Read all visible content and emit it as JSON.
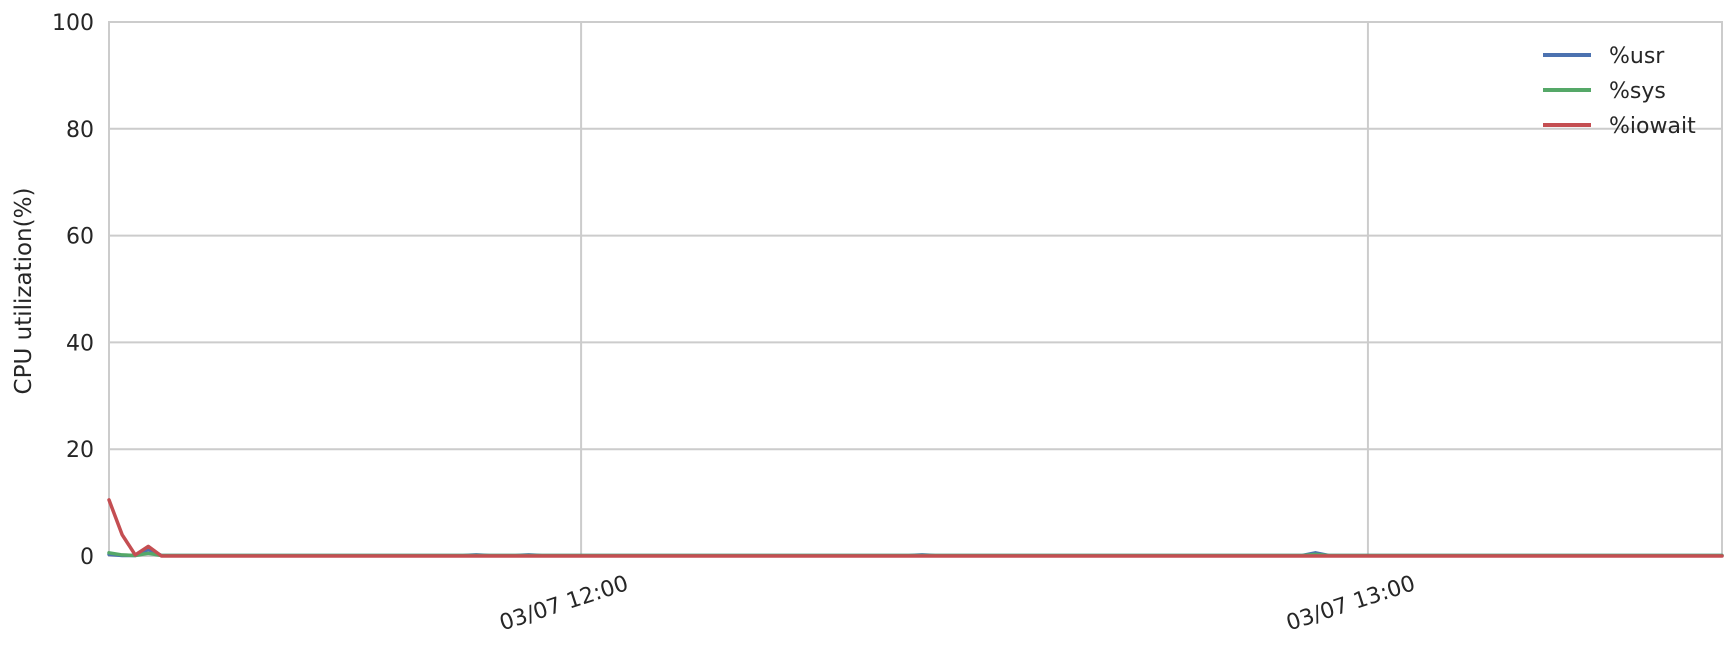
{
  "chart_data": {
    "type": "line",
    "title": "",
    "xlabel": "",
    "ylabel": "CPU utilization(%)",
    "ylim": [
      0,
      100
    ],
    "yticks": [
      0,
      20,
      40,
      60,
      80,
      100
    ],
    "xlim": [
      "03/07 11:24",
      "03/07 13:27"
    ],
    "xticks": [
      {
        "label": "03/07 12:00",
        "minute": 36
      },
      {
        "label": "03/07 13:00",
        "minute": 96
      }
    ],
    "grid": true,
    "legend_position": "top-right",
    "x_minutes": [
      0,
      1,
      2,
      3,
      4,
      5,
      6,
      7,
      8,
      9,
      10,
      11,
      12,
      13,
      14,
      15,
      16,
      17,
      18,
      19,
      20,
      21,
      22,
      23,
      24,
      25,
      26,
      27,
      28,
      29,
      30,
      31,
      32,
      33,
      34,
      35,
      36,
      37,
      38,
      39,
      40,
      41,
      42,
      43,
      44,
      45,
      46,
      47,
      48,
      49,
      50,
      51,
      52,
      53,
      54,
      55,
      56,
      57,
      58,
      59,
      60,
      61,
      62,
      63,
      64,
      65,
      66,
      67,
      68,
      69,
      70,
      71,
      72,
      73,
      74,
      75,
      76,
      77,
      78,
      79,
      80,
      81,
      82,
      83,
      84,
      85,
      86,
      87,
      88,
      89,
      90,
      91,
      92,
      93,
      94,
      95,
      96,
      97,
      98,
      99,
      100,
      101,
      102,
      103,
      104,
      105,
      106,
      107,
      108,
      109,
      110,
      111,
      112,
      113,
      114,
      115,
      116,
      117,
      118,
      119,
      120,
      121,
      122,
      123
    ],
    "series": [
      {
        "name": "%usr",
        "color": "#4c72b0",
        "values": [
          0.3,
          0.1,
          0.1,
          1.2,
          0.1,
          0.1,
          0.1,
          0.1,
          0.1,
          0.1,
          0.1,
          0.1,
          0.1,
          0.1,
          0.1,
          0.1,
          0.1,
          0.1,
          0.1,
          0.1,
          0.1,
          0.1,
          0.1,
          0.1,
          0.1,
          0.1,
          0.1,
          0.1,
          0.2,
          0.1,
          0.1,
          0.1,
          0.2,
          0.1,
          0.1,
          0.1,
          0.1,
          0.1,
          0.1,
          0.1,
          0.1,
          0.1,
          0.1,
          0.1,
          0.1,
          0.1,
          0.1,
          0.1,
          0.1,
          0.1,
          0.1,
          0.1,
          0.1,
          0.1,
          0.1,
          0.1,
          0.1,
          0.1,
          0.1,
          0.1,
          0.1,
          0.1,
          0.2,
          0.1,
          0.1,
          0.1,
          0.1,
          0.1,
          0.1,
          0.1,
          0.1,
          0.1,
          0.1,
          0.1,
          0.1,
          0.1,
          0.1,
          0.1,
          0.1,
          0.1,
          0.1,
          0.1,
          0.1,
          0.1,
          0.1,
          0.1,
          0.1,
          0.1,
          0.1,
          0.1,
          0.1,
          0.1,
          0.6,
          0.1,
          0.1,
          0.1,
          0.1,
          0.1,
          0.1,
          0.1,
          0.1,
          0.1,
          0.1,
          0.1,
          0.1,
          0.1,
          0.1,
          0.1,
          0.1,
          0.1,
          0.1,
          0.1,
          0.1,
          0.1,
          0.1,
          0.1,
          0.1,
          0.1,
          0.1,
          0.1,
          0.1,
          0.1,
          0.1,
          0.1
        ]
      },
      {
        "name": "%sys",
        "color": "#55a868",
        "values": [
          0.6,
          0.2,
          0.1,
          0.5,
          0.1,
          0.1,
          0.1,
          0.1,
          0.1,
          0.1,
          0.1,
          0.1,
          0.1,
          0.1,
          0.1,
          0.1,
          0.1,
          0.1,
          0.1,
          0.1,
          0.1,
          0.1,
          0.1,
          0.1,
          0.1,
          0.1,
          0.1,
          0.1,
          0.1,
          0.1,
          0.1,
          0.1,
          0.1,
          0.1,
          0.1,
          0.1,
          0.1,
          0.1,
          0.1,
          0.1,
          0.1,
          0.1,
          0.1,
          0.1,
          0.1,
          0.1,
          0.1,
          0.1,
          0.1,
          0.1,
          0.1,
          0.1,
          0.1,
          0.1,
          0.1,
          0.1,
          0.1,
          0.1,
          0.1,
          0.1,
          0.1,
          0.1,
          0.1,
          0.1,
          0.1,
          0.1,
          0.1,
          0.1,
          0.1,
          0.1,
          0.1,
          0.1,
          0.1,
          0.1,
          0.1,
          0.1,
          0.1,
          0.1,
          0.1,
          0.1,
          0.1,
          0.1,
          0.1,
          0.1,
          0.1,
          0.1,
          0.1,
          0.1,
          0.1,
          0.1,
          0.1,
          0.1,
          0.3,
          0.1,
          0.1,
          0.1,
          0.1,
          0.1,
          0.1,
          0.1,
          0.1,
          0.1,
          0.1,
          0.1,
          0.1,
          0.1,
          0.1,
          0.1,
          0.1,
          0.1,
          0.1,
          0.1,
          0.1,
          0.1,
          0.1,
          0.1,
          0.1,
          0.1,
          0.1,
          0.1,
          0.1,
          0.1,
          0.1,
          0.1
        ]
      },
      {
        "name": "%iowait",
        "color": "#c44e52",
        "values": [
          10.5,
          4.0,
          0.2,
          1.8,
          0.0,
          0.0,
          0.0,
          0.0,
          0.0,
          0.0,
          0.0,
          0.0,
          0.0,
          0.0,
          0.0,
          0.0,
          0.0,
          0.0,
          0.0,
          0.0,
          0.0,
          0.0,
          0.0,
          0.0,
          0.0,
          0.0,
          0.0,
          0.0,
          0.0,
          0.0,
          0.0,
          0.0,
          0.0,
          0.0,
          0.0,
          0.0,
          0.0,
          0.0,
          0.0,
          0.0,
          0.0,
          0.0,
          0.0,
          0.0,
          0.0,
          0.0,
          0.0,
          0.0,
          0.0,
          0.0,
          0.0,
          0.0,
          0.0,
          0.0,
          0.0,
          0.0,
          0.0,
          0.0,
          0.0,
          0.0,
          0.0,
          0.0,
          0.0,
          0.0,
          0.0,
          0.0,
          0.0,
          0.0,
          0.0,
          0.0,
          0.0,
          0.0,
          0.0,
          0.0,
          0.0,
          0.0,
          0.0,
          0.0,
          0.0,
          0.0,
          0.0,
          0.0,
          0.0,
          0.0,
          0.0,
          0.0,
          0.0,
          0.0,
          0.0,
          0.0,
          0.0,
          0.0,
          0.0,
          0.0,
          0.0,
          0.0,
          0.0,
          0.0,
          0.0,
          0.0,
          0.0,
          0.0,
          0.0,
          0.0,
          0.0,
          0.0,
          0.0,
          0.0,
          0.0,
          0.0,
          0.0,
          0.0,
          0.0,
          0.0,
          0.0,
          0.0,
          0.0,
          0.0,
          0.0,
          0.0,
          0.0,
          0.0,
          0.0,
          0.0
        ]
      }
    ],
    "style": {
      "grid_color": "#cccccc",
      "text_color": "#262626",
      "background": "#ffffff"
    }
  }
}
